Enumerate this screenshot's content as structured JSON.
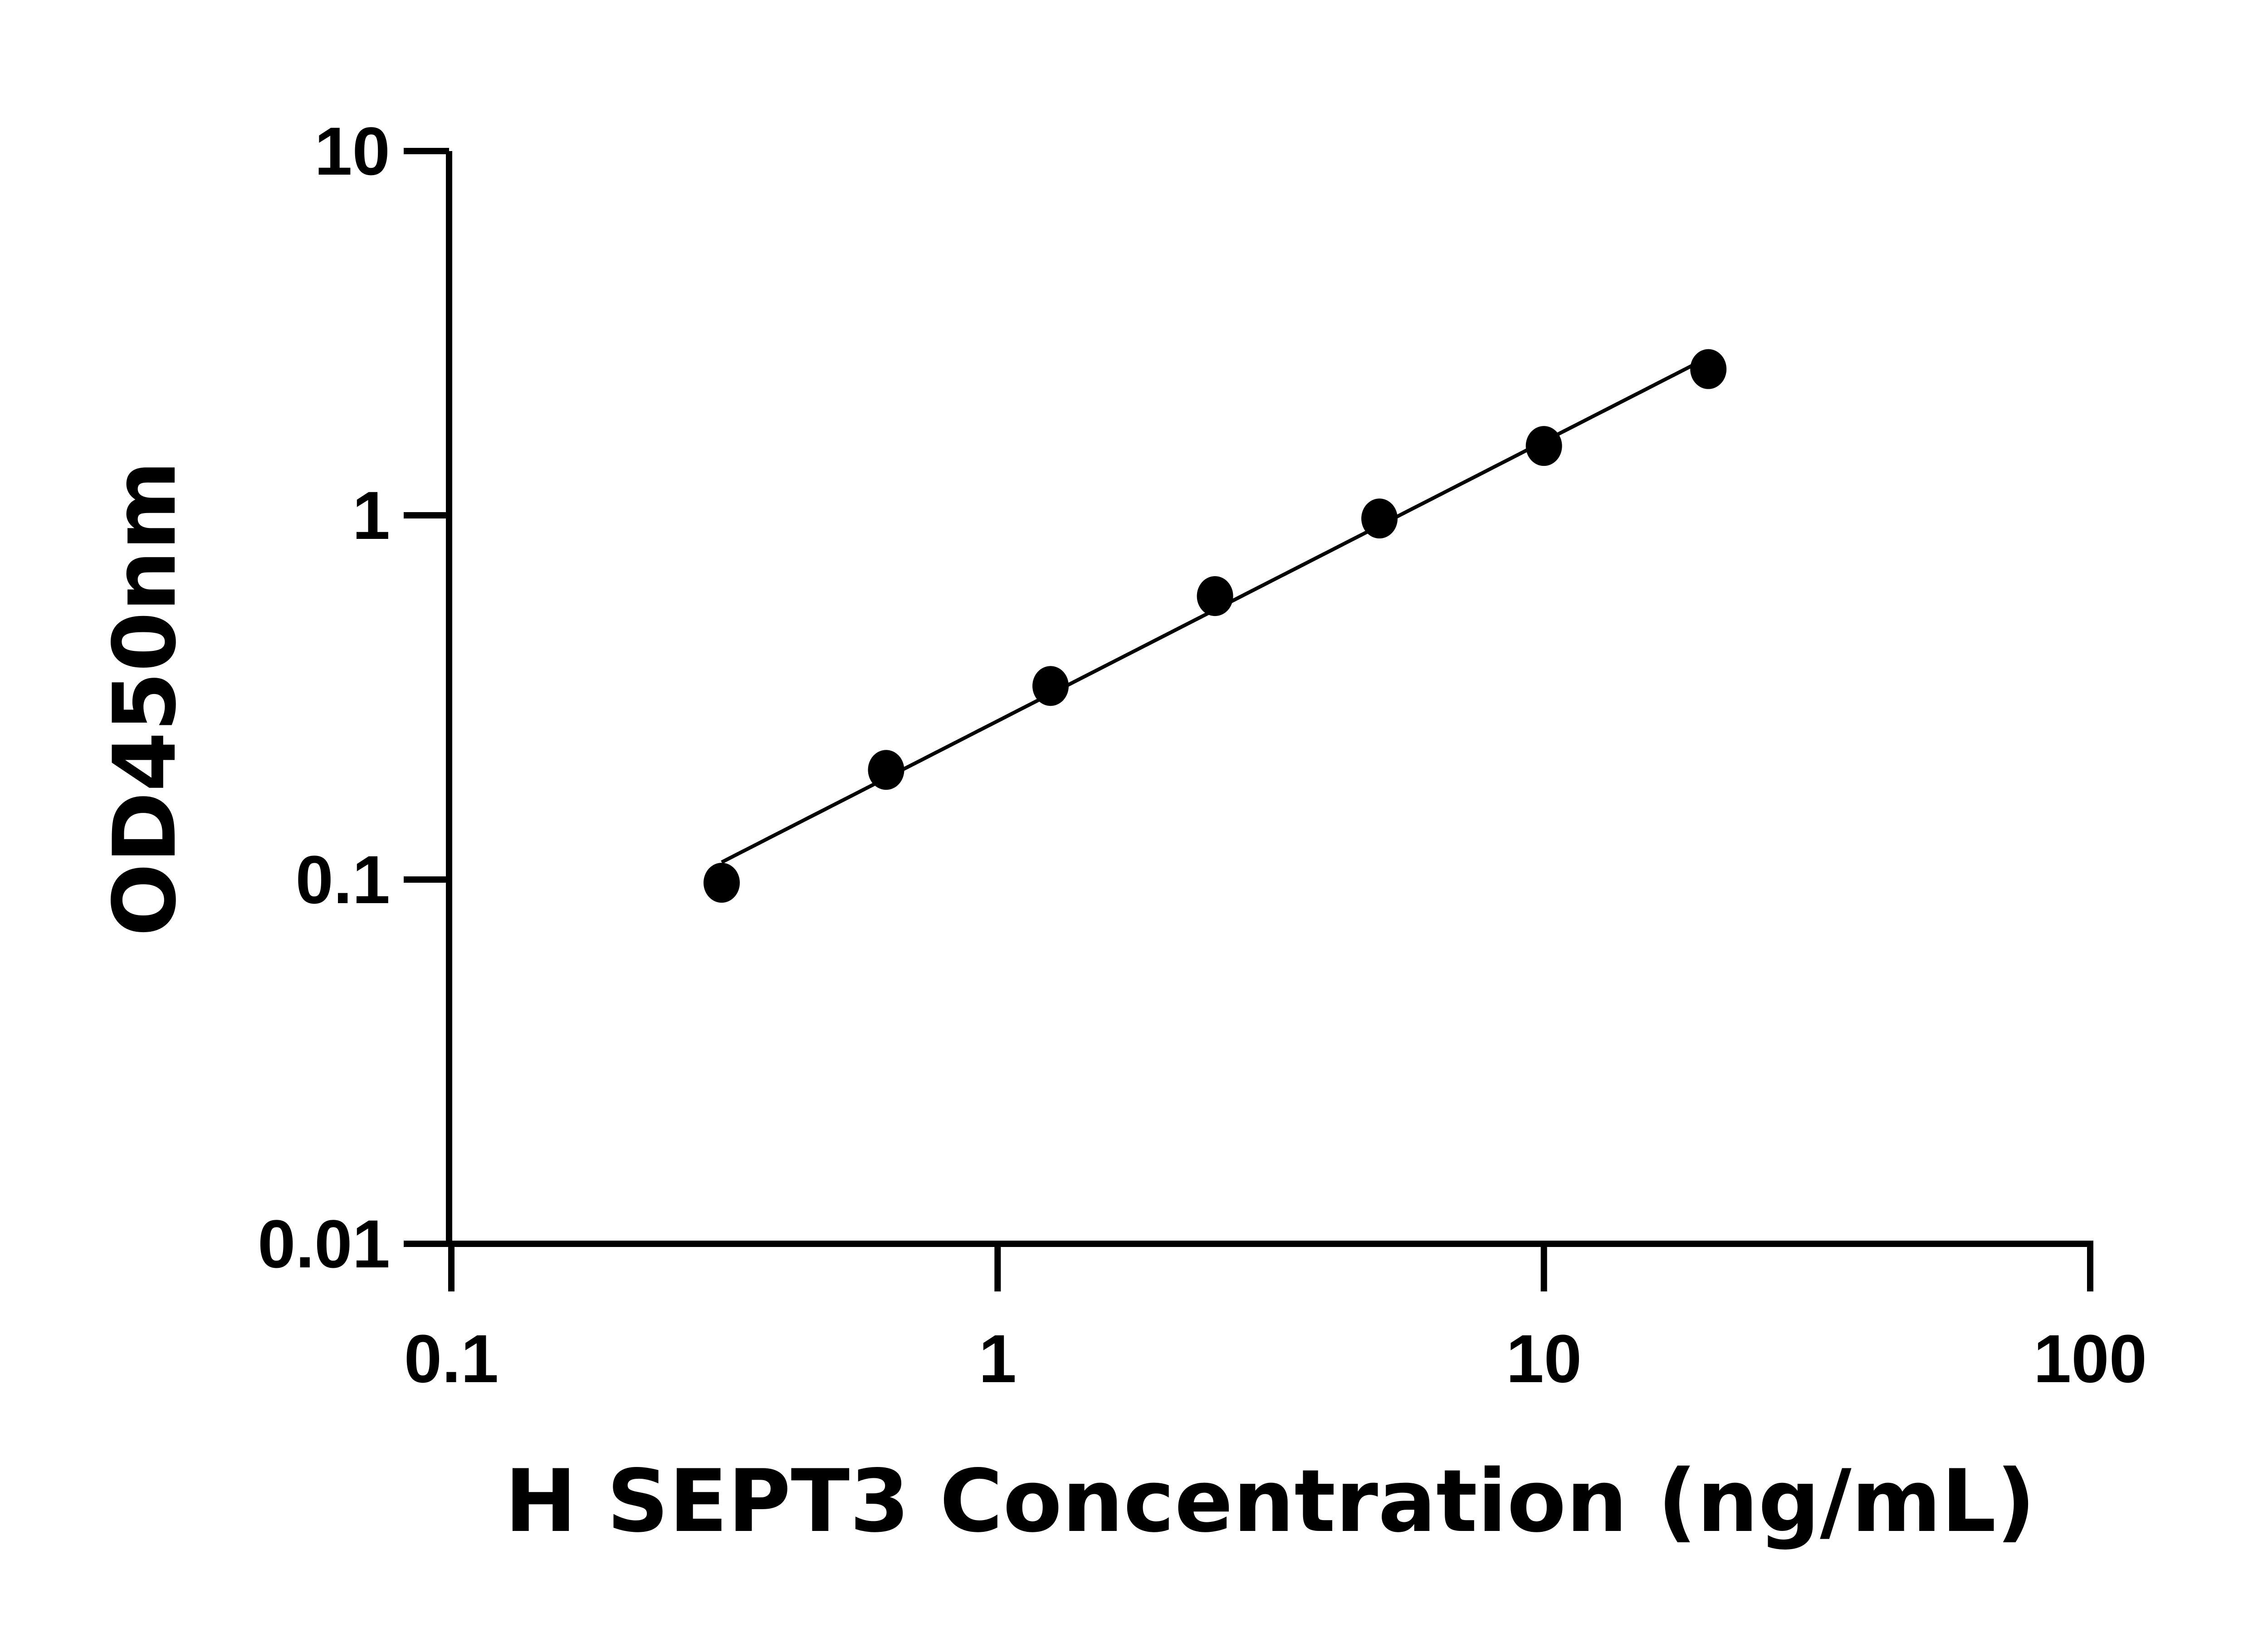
{
  "chart_data": {
    "type": "scatter",
    "title": "",
    "xlabel": "H SEPT3 Concentration (ng/mL)",
    "ylabel": "OD450nm",
    "x_scale": "log",
    "y_scale": "log",
    "xlim": [
      0.1,
      100
    ],
    "ylim": [
      0.01,
      10
    ],
    "x_ticks": [
      "0.1",
      "1",
      "10",
      "100"
    ],
    "y_ticks": [
      "0.01",
      "0.1",
      "1",
      "10"
    ],
    "grid": false,
    "legend": "none",
    "series": [
      {
        "x": [
          0.3125,
          0.625,
          1.25,
          2.5,
          5,
          10,
          20
        ],
        "y": [
          0.098,
          0.2,
          0.34,
          0.6,
          0.98,
          1.55,
          2.52
        ],
        "marker": "filled-circle",
        "fit_line": true,
        "color": "#000000"
      }
    ]
  }
}
